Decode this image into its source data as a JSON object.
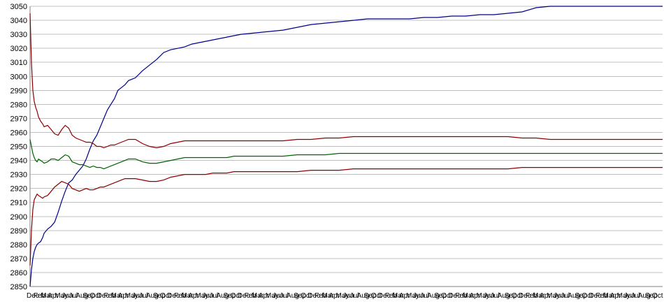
{
  "chart_data": {
    "type": "line",
    "title": "",
    "xlabel": "",
    "ylabel": "",
    "ylim": [
      2850,
      3050
    ],
    "y_ticks": [
      3050,
      3040,
      3030,
      3020,
      3010,
      3000,
      2990,
      2980,
      2970,
      2960,
      2950,
      2940,
      2930,
      2920,
      2910,
      2900,
      2890,
      2880,
      2870,
      2860,
      2850
    ],
    "grid": "horizontal",
    "legend": "none",
    "x_tick_labels": [
      "Dec",
      "Feb",
      "Mar",
      "Apr",
      "May",
      "Jun",
      "Jul",
      "Aug",
      "Sep",
      "Oct",
      "Dec",
      "Feb",
      "Mar",
      "Apr",
      "May",
      "Jun",
      "Jul",
      "Aug",
      "Sep",
      "Oct",
      "Dec",
      "Feb",
      "Mar",
      "Apr",
      "May",
      "Jun",
      "Jul",
      "Aug",
      "Sep",
      "Oct",
      "Dec",
      "Feb",
      "Mar",
      "Apr",
      "May",
      "Jun",
      "Jul",
      "Aug",
      "Sep",
      "Oct",
      "Dec",
      "Feb",
      "Mar",
      "Apr",
      "May",
      "Jun",
      "Jul",
      "Aug",
      "Sep",
      "Oct",
      "Dec",
      "Feb",
      "Mar",
      "Apr",
      "May",
      "Jun",
      "Jul",
      "Aug",
      "Sep",
      "Oct",
      "Dec",
      "Feb",
      "Mar",
      "Apr",
      "May",
      "Jun",
      "Jul",
      "Aug",
      "Sep",
      "Oct",
      "Dec",
      "Feb",
      "Mar",
      "Apr",
      "May",
      "Jun",
      "Jul",
      "Aug",
      "Sep",
      "Oct",
      "Dec",
      "Feb",
      "Mar",
      "Apr",
      "May",
      "Jun",
      "Jul",
      "Aug",
      "Sep",
      "Oct"
    ],
    "x": [
      0,
      2,
      4,
      6,
      8,
      10,
      12,
      15,
      18,
      20,
      25,
      30,
      35,
      40,
      45,
      50,
      55,
      60,
      65,
      70,
      75,
      80,
      85,
      90,
      95,
      100,
      105,
      110,
      115,
      120,
      125,
      130,
      135,
      140,
      145,
      150,
      160,
      170,
      180,
      190,
      200,
      210,
      220,
      230,
      240,
      250,
      260,
      270,
      280,
      290,
      300,
      320,
      340,
      360,
      380,
      400,
      420,
      440,
      460,
      480,
      500,
      520,
      540,
      560,
      580,
      600,
      620,
      640,
      660,
      680,
      700,
      720,
      740,
      760,
      780,
      800,
      820,
      840,
      860,
      880,
      900
    ],
    "series": [
      {
        "color": "#00008b",
        "values": [
          2850,
          2862,
          2870,
          2875,
          2878,
          2880,
          2881,
          2882,
          2885,
          2888,
          2891,
          2893,
          2896,
          2903,
          2911,
          2918,
          2924,
          2926,
          2930,
          2933,
          2936,
          2941,
          2948,
          2954,
          2958,
          2964,
          2970,
          2976,
          2980,
          2984,
          2990,
          2992,
          2994,
          2997,
          2998,
          2999,
          3004,
          3008,
          3012,
          3017,
          3019,
          3020,
          3021,
          3023,
          3024,
          3025,
          3026,
          3027,
          3028,
          3029,
          3030,
          3031,
          3032,
          3033,
          3035,
          3037,
          3038,
          3039,
          3040,
          3041,
          3041,
          3041,
          3041,
          3042,
          3042,
          3043,
          3043,
          3044,
          3044,
          3045,
          3046,
          3049,
          3050,
          3050,
          3050,
          3050,
          3050,
          3050,
          3050,
          3050,
          3050
        ]
      },
      {
        "color": "#8b0000",
        "values": [
          3045,
          3010,
          2990,
          2982,
          2978,
          2975,
          2971,
          2968,
          2966,
          2964,
          2965,
          2962,
          2959,
          2958,
          2962,
          2965,
          2963,
          2958,
          2956,
          2955,
          2954,
          2953,
          2953,
          2952,
          2950,
          2950,
          2949,
          2950,
          2951,
          2951,
          2952,
          2953,
          2954,
          2955,
          2955,
          2955,
          2952,
          2950,
          2949,
          2950,
          2952,
          2953,
          2954,
          2954,
          2954,
          2954,
          2954,
          2954,
          2954,
          2954,
          2954,
          2954,
          2954,
          2954,
          2955,
          2955,
          2956,
          2956,
          2957,
          2957,
          2957,
          2957,
          2957,
          2957,
          2957,
          2957,
          2957,
          2957,
          2957,
          2957,
          2956,
          2956,
          2955,
          2955,
          2955,
          2955,
          2955,
          2955,
          2955,
          2955,
          2955
        ]
      },
      {
        "color": "#006400",
        "values": [
          2955,
          2950,
          2945,
          2942,
          2940,
          2939,
          2941,
          2940,
          2939,
          2938,
          2939,
          2941,
          2941,
          2940,
          2942,
          2944,
          2943,
          2939,
          2938,
          2937,
          2937,
          2936,
          2935,
          2936,
          2935,
          2935,
          2934,
          2935,
          2936,
          2937,
          2938,
          2939,
          2940,
          2941,
          2941,
          2941,
          2939,
          2938,
          2938,
          2939,
          2940,
          2941,
          2942,
          2942,
          2942,
          2942,
          2942,
          2942,
          2942,
          2943,
          2943,
          2943,
          2943,
          2943,
          2944,
          2944,
          2944,
          2945,
          2945,
          2945,
          2945,
          2945,
          2945,
          2945,
          2945,
          2945,
          2945,
          2945,
          2945,
          2945,
          2945,
          2945,
          2945,
          2945,
          2945,
          2945,
          2945,
          2945,
          2945,
          2945,
          2945
        ]
      },
      {
        "color": "#8b0000",
        "values": [
          2865,
          2890,
          2905,
          2912,
          2914,
          2916,
          2915,
          2914,
          2913,
          2914,
          2915,
          2918,
          2921,
          2923,
          2925,
          2924,
          2923,
          2920,
          2919,
          2918,
          2919,
          2920,
          2919,
          2919,
          2920,
          2921,
          2921,
          2922,
          2923,
          2924,
          2925,
          2926,
          2927,
          2927,
          2927,
          2927,
          2926,
          2925,
          2925,
          2926,
          2928,
          2929,
          2930,
          2930,
          2930,
          2930,
          2931,
          2931,
          2931,
          2932,
          2932,
          2932,
          2932,
          2932,
          2932,
          2933,
          2933,
          2933,
          2934,
          2934,
          2934,
          2934,
          2934,
          2934,
          2934,
          2934,
          2934,
          2934,
          2934,
          2934,
          2935,
          2935,
          2935,
          2935,
          2935,
          2935,
          2935,
          2935,
          2935,
          2935,
          2935
        ]
      }
    ]
  }
}
